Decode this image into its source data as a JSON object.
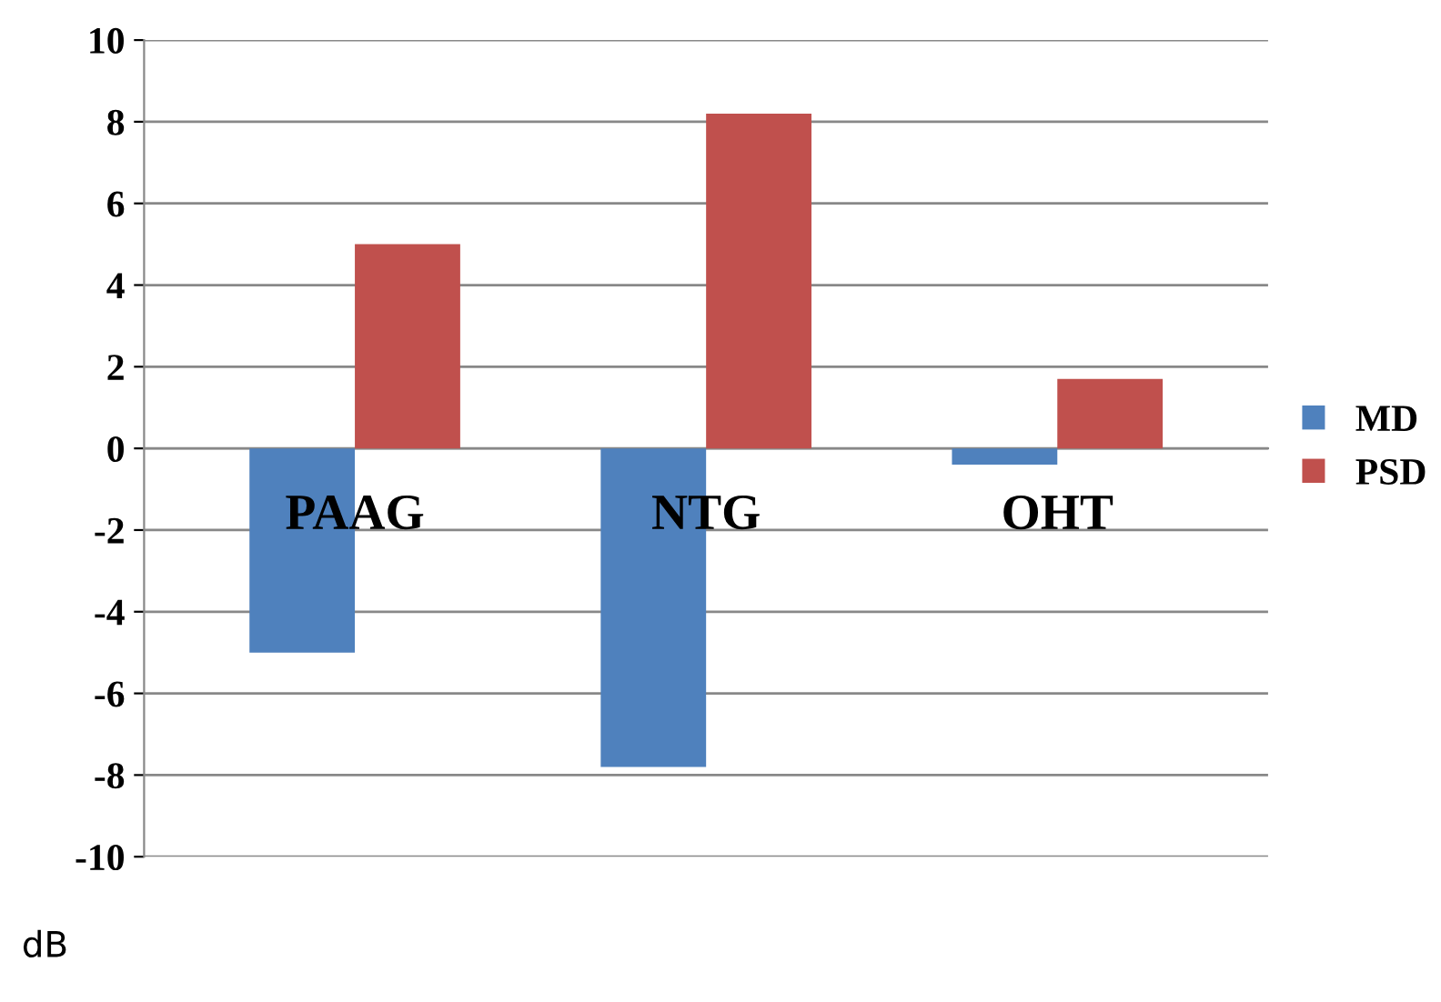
{
  "chart_data": {
    "type": "bar",
    "categories": [
      "PAAG",
      "NTG",
      "OHT"
    ],
    "series": [
      {
        "name": "MD",
        "color": "#4f81bd",
        "values": [
          -5.0,
          -7.8,
          -0.4
        ]
      },
      {
        "name": "PSD",
        "color": "#c0504d",
        "values": [
          5.0,
          8.2,
          1.7
        ]
      }
    ],
    "ylabel": "dB",
    "ylim": [
      -10,
      10
    ],
    "yticks": [
      -10,
      -8,
      -6,
      -4,
      -2,
      0,
      2,
      4,
      6,
      8,
      10
    ],
    "grid": "y",
    "legend": "right"
  }
}
